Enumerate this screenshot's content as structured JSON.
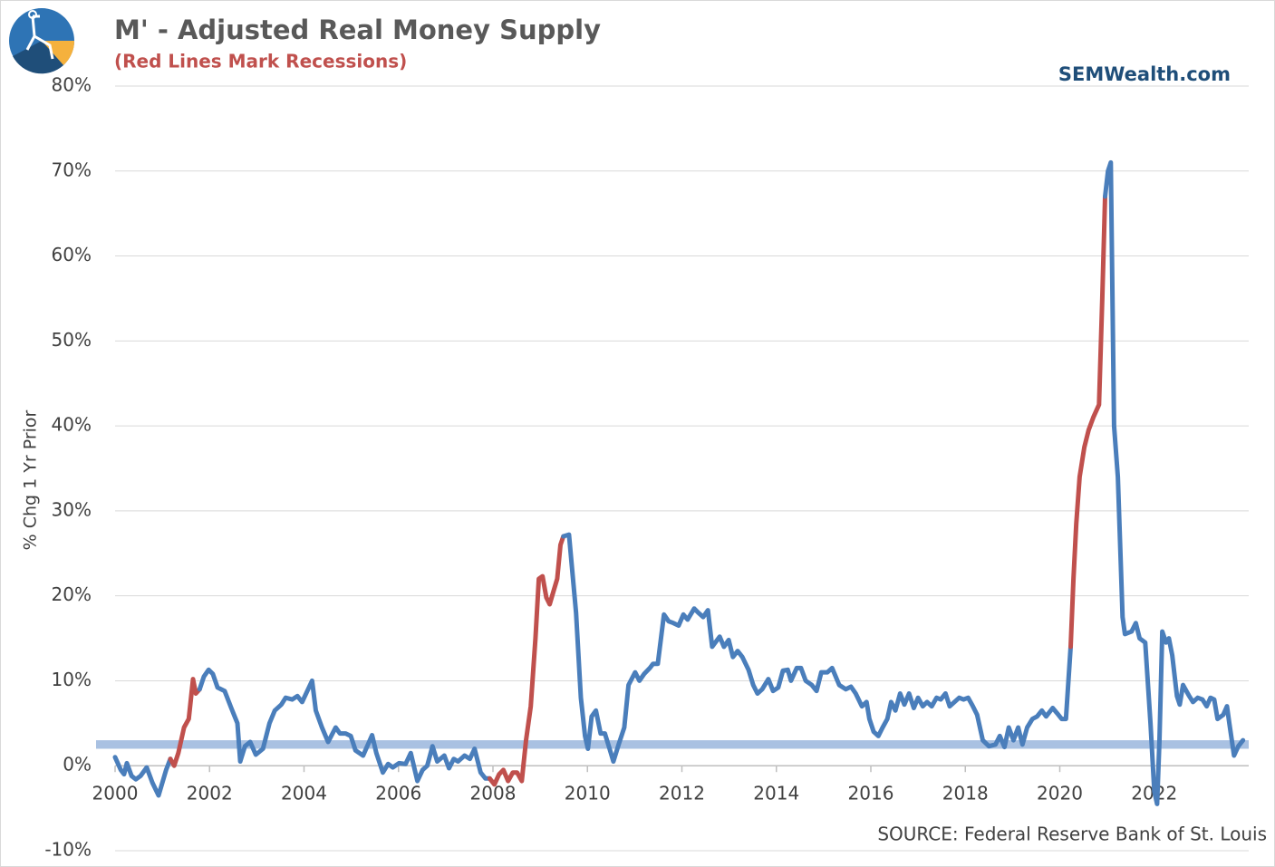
{
  "chart_data": {
    "type": "line",
    "title": "M' - Adjusted Real Money Supply",
    "subtitle": "(Red Lines Mark Recessions)",
    "brand": "SEMWealth.com",
    "source": "SOURCE:  Federal Reserve Bank of St. Louis",
    "y_label": "% Chg 1 Yr Prior",
    "xlim": [
      2000,
      2024
    ],
    "xticks": [
      2000,
      2002,
      2004,
      2006,
      2008,
      2010,
      2012,
      2014,
      2016,
      2018,
      2020,
      2022
    ],
    "ylim": [
      -10,
      80
    ],
    "yticks": [
      {
        "value": -10,
        "label": "-10%"
      },
      {
        "value": 0,
        "label": "0%"
      },
      {
        "value": 10,
        "label": "10%"
      },
      {
        "value": 20,
        "label": "20%"
      },
      {
        "value": 30,
        "label": "30%"
      },
      {
        "value": 40,
        "label": "40%"
      },
      {
        "value": 50,
        "label": "50%"
      },
      {
        "value": 60,
        "label": "60%"
      },
      {
        "value": 70,
        "label": "70%"
      },
      {
        "value": 80,
        "label": "80%"
      }
    ],
    "grid": true,
    "color": "#4a7ebb",
    "recession_color": "#c0504d",
    "recessions": [
      [
        2001.17,
        2001.79
      ],
      [
        2007.93,
        2009.49
      ],
      [
        2020.23,
        2020.96
      ]
    ],
    "reference_band": [
      2,
      3
    ],
    "reference_band_color": "#a9c1e2",
    "x": [
      2000.0,
      2000.12,
      2000.19,
      2000.25,
      2000.35,
      2000.44,
      2000.54,
      2000.67,
      2000.79,
      2000.92,
      2001.08,
      2001.17,
      2001.25,
      2001.34,
      2001.46,
      2001.56,
      2001.65,
      2001.71,
      2001.79,
      2001.88,
      2001.98,
      2002.07,
      2002.17,
      2002.32,
      2002.46,
      2002.59,
      2002.65,
      2002.75,
      2002.86,
      2002.98,
      2003.13,
      2003.27,
      2003.38,
      2003.52,
      2003.61,
      2003.75,
      2003.86,
      2003.96,
      2004.17,
      2004.25,
      2004.38,
      2004.51,
      2004.67,
      2004.76,
      2004.88,
      2004.99,
      2005.09,
      2005.25,
      2005.44,
      2005.53,
      2005.67,
      2005.78,
      2005.88,
      2006.01,
      2006.15,
      2006.26,
      2006.4,
      2006.51,
      2006.61,
      2006.72,
      2006.82,
      2006.97,
      2007.07,
      2007.17,
      2007.26,
      2007.4,
      2007.51,
      2007.61,
      2007.74,
      2007.84,
      2007.93,
      2008.03,
      2008.13,
      2008.22,
      2008.32,
      2008.42,
      2008.51,
      2008.61,
      2008.7,
      2008.8,
      2008.9,
      2008.97,
      2009.05,
      2009.13,
      2009.2,
      2009.28,
      2009.36,
      2009.43,
      2009.49,
      2009.61,
      2009.76,
      2009.86,
      2009.95,
      2010.01,
      2010.09,
      2010.18,
      2010.28,
      2010.37,
      2010.47,
      2010.55,
      2010.66,
      2010.78,
      2010.87,
      2011.01,
      2011.1,
      2011.2,
      2011.32,
      2011.39,
      2011.49,
      2011.62,
      2011.72,
      2011.82,
      2011.93,
      2012.03,
      2012.12,
      2012.26,
      2012.35,
      2012.45,
      2012.55,
      2012.64,
      2012.8,
      2012.89,
      2012.99,
      2013.08,
      2013.18,
      2013.28,
      2013.41,
      2013.51,
      2013.6,
      2013.7,
      2013.83,
      2013.93,
      2014.04,
      2014.14,
      2014.24,
      2014.31,
      2014.43,
      2014.52,
      2014.62,
      2014.75,
      2014.85,
      2014.95,
      2015.08,
      2015.18,
      2015.33,
      2015.47,
      2015.58,
      2015.68,
      2015.81,
      2015.91,
      2015.97,
      2016.06,
      2016.16,
      2016.25,
      2016.35,
      2016.43,
      2016.52,
      2016.62,
      2016.71,
      2016.81,
      2016.91,
      2017.0,
      2017.1,
      2017.19,
      2017.29,
      2017.39,
      2017.48,
      2017.58,
      2017.67,
      2017.77,
      2017.87,
      2017.96,
      2018.06,
      2018.16,
      2018.25,
      2018.37,
      2018.5,
      2018.64,
      2018.73,
      2018.83,
      2018.92,
      2019.02,
      2019.12,
      2019.21,
      2019.31,
      2019.42,
      2019.52,
      2019.62,
      2019.71,
      2019.85,
      2019.94,
      2020.04,
      2020.13,
      2020.23,
      2020.29,
      2020.35,
      2020.42,
      2020.52,
      2020.61,
      2020.71,
      2020.83,
      2020.9,
      2020.96,
      2021.02,
      2021.08,
      2021.15,
      2021.23,
      2021.33,
      2021.38,
      2021.52,
      2021.61,
      2021.69,
      2021.81,
      2021.92,
      2022.0,
      2022.06,
      2022.11,
      2022.17,
      2022.25,
      2022.31,
      2022.38,
      2022.48,
      2022.54,
      2022.61,
      2022.73,
      2022.82,
      2022.92,
      2023.02,
      2023.11,
      2023.19,
      2023.27,
      2023.34,
      2023.46,
      2023.54,
      2023.59,
      2023.69,
      2023.78,
      2023.88
    ],
    "values": [
      1,
      -0.5,
      -1,
      0.3,
      -1.2,
      -1.6,
      -1.2,
      -0.2,
      -2,
      -3.5,
      -0.5,
      0.8,
      0,
      1.5,
      4.5,
      5.5,
      10.2,
      8.5,
      9,
      10.5,
      11.3,
      10.8,
      9.2,
      8.8,
      6.8,
      5,
      0.5,
      2.3,
      2.8,
      1.3,
      2,
      5,
      6.5,
      7.2,
      8,
      7.8,
      8.2,
      7.5,
      10,
      6.5,
      4.5,
      2.8,
      4.5,
      3.8,
      3.8,
      3.5,
      1.8,
      1.2,
      3.6,
      1.5,
      -0.8,
      0.2,
      -0.2,
      0.3,
      0.2,
      1.5,
      -1.8,
      -0.5,
      0,
      2.3,
      0.5,
      1.2,
      -0.3,
      0.8,
      0.5,
      1.2,
      0.8,
      2,
      -0.8,
      -1.5,
      -1.5,
      -2.2,
      -1,
      -0.5,
      -1.8,
      -0.8,
      -0.8,
      -1.8,
      3,
      7,
      15,
      22,
      22.3,
      19.8,
      19,
      20.5,
      22,
      26,
      27,
      27.2,
      18,
      8,
      3.5,
      2,
      5.8,
      6.5,
      3.8,
      3.8,
      2,
      0.5,
      2.5,
      4.5,
      9.5,
      11,
      10,
      10.8,
      11.5,
      12,
      12,
      17.8,
      17,
      16.8,
      16.5,
      17.8,
      17.2,
      18.5,
      18,
      17.5,
      18.3,
      14,
      15.2,
      14,
      14.8,
      12.8,
      13.5,
      12.8,
      11.3,
      9.5,
      8.5,
      9,
      10.2,
      8.8,
      9.2,
      11.2,
      11.3,
      10,
      11.5,
      11.5,
      10,
      9.5,
      8.8,
      11,
      11,
      11.5,
      9.5,
      9,
      9.3,
      8.5,
      7,
      7.5,
      5.5,
      4,
      3.5,
      4.5,
      5.5,
      7.5,
      6.5,
      8.5,
      7.2,
      8.5,
      6.8,
      8,
      7,
      7.5,
      7,
      8,
      7.8,
      8.5,
      7,
      7.5,
      8,
      7.8,
      8,
      7,
      6,
      3,
      2.3,
      2.5,
      3.5,
      2.2,
      4.5,
      3,
      4.5,
      2.5,
      4.5,
      5.5,
      5.8,
      6.5,
      5.8,
      6.8,
      6.2,
      5.5,
      5.5,
      14,
      22,
      28.5,
      34,
      37.5,
      39.5,
      41,
      42.5,
      55,
      67,
      70,
      71,
      40,
      34,
      17.5,
      15.5,
      15.8,
      16.8,
      15,
      14.5,
      5,
      -3,
      -4.5,
      3,
      15.8,
      14.5,
      15,
      13,
      8.2,
      7.2,
      9.5,
      8.3,
      7.5,
      8,
      7.8,
      7,
      8,
      7.8,
      5.5,
      6,
      7,
      5,
      1.2,
      2.3,
      3
    ]
  }
}
